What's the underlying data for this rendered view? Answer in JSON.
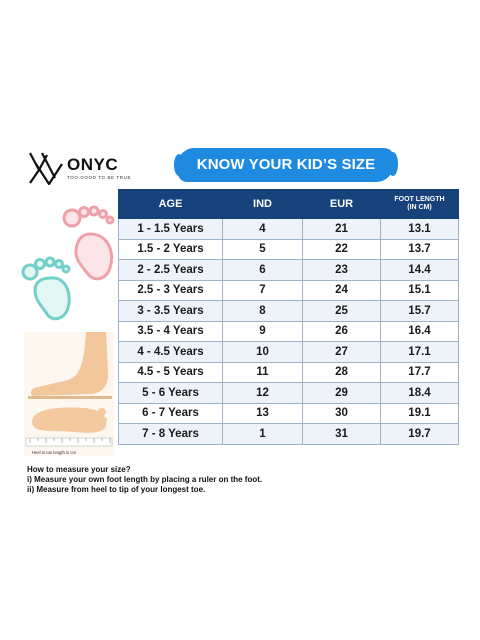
{
  "logo": {
    "brand": "ONYC",
    "tagline": "TOO GOOD TO BE TRUE"
  },
  "banner": {
    "title": "KNOW YOUR KID’S SIZE"
  },
  "illustration": {
    "caption": "Heel to toe length in cm"
  },
  "table": {
    "headers": [
      "AGE",
      "IND",
      "EUR"
    ],
    "foot_header_line1": "FOOT LENGTH",
    "foot_header_line2": "(IN CM)",
    "rows": [
      [
        "1 - 1.5 Years",
        "4",
        "21",
        "13.1"
      ],
      [
        "1.5 - 2 Years",
        "5",
        "22",
        "13.7"
      ],
      [
        "2 - 2.5 Years",
        "6",
        "23",
        "14.4"
      ],
      [
        "2.5 - 3 Years",
        "7",
        "24",
        "15.1"
      ],
      [
        "3 - 3.5 Years",
        "8",
        "25",
        "15.7"
      ],
      [
        "3.5 - 4 Years",
        "9",
        "26",
        "16.4"
      ],
      [
        "4 - 4.5 Years",
        "10",
        "27",
        "17.1"
      ],
      [
        "4.5 - 5 Years",
        "11",
        "28",
        "17.7"
      ],
      [
        "5 - 6 Years",
        "12",
        "29",
        "18.4"
      ],
      [
        "6 - 7 Years",
        "13",
        "30",
        "19.1"
      ],
      [
        "7 - 8 Years",
        "1",
        "31",
        "19.7"
      ]
    ]
  },
  "instructions": {
    "heading": "How to measure your size?",
    "line1": "i) Measure your own foot length by placing a ruler on the foot.",
    "line2": "ii) Measure from heel to tip of your longest toe."
  },
  "colors": {
    "banner": "#1f8be0",
    "header": "#17417a",
    "pink_foot": "#f0a0a8",
    "teal_foot": "#72cfc9"
  }
}
